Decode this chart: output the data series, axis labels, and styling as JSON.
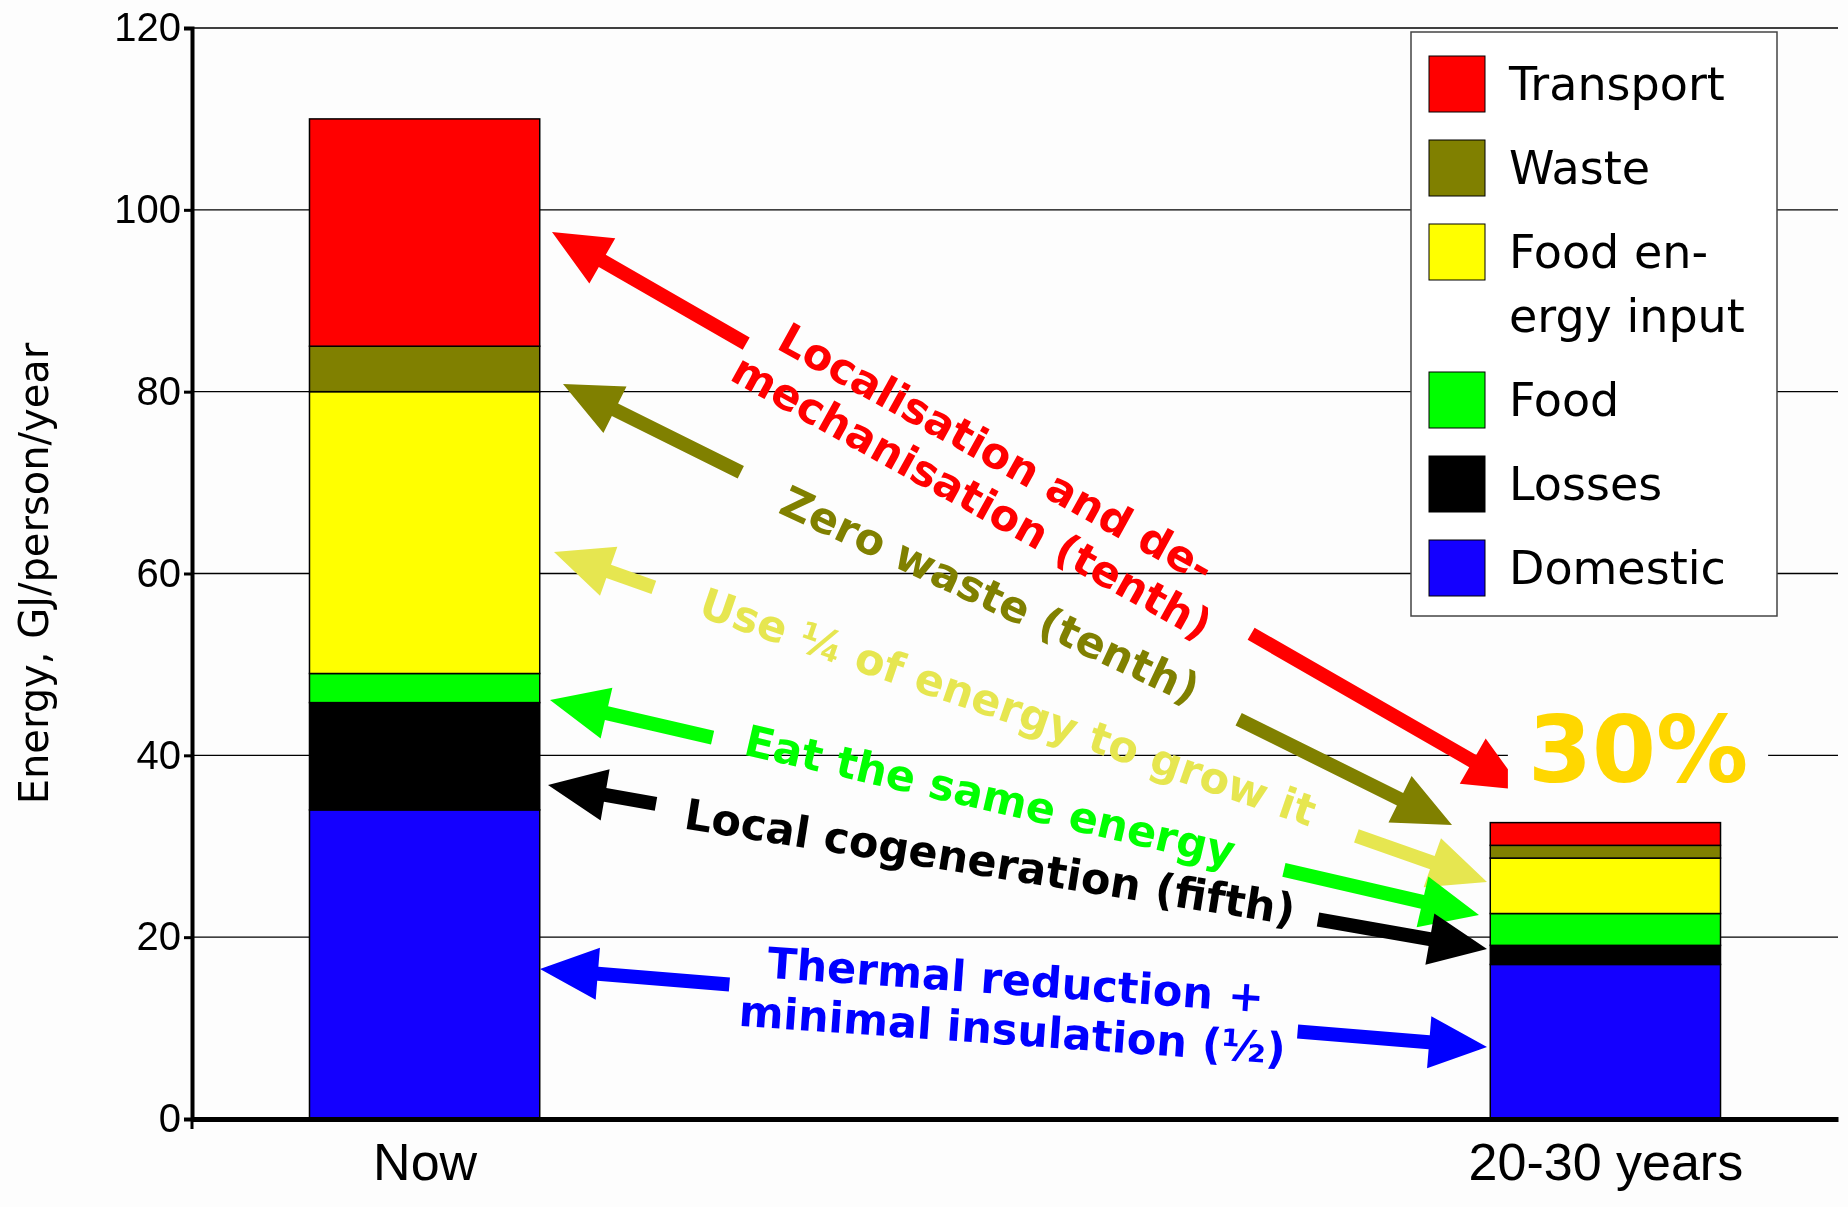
{
  "chart_data": {
    "type": "bar",
    "stacked": true,
    "ylabel": "Energy, GJ/person/year",
    "categories": [
      "Now",
      "20-30 years"
    ],
    "series": [
      {
        "name": "Domestic",
        "color": "#1400ff",
        "values": [
          34,
          17
        ]
      },
      {
        "name": "Losses",
        "color": "#000000",
        "values": [
          11.8,
          2.1
        ]
      },
      {
        "name": "Food",
        "color": "#00ff00",
        "values": [
          3.2,
          3.5
        ]
      },
      {
        "name": "Food en-\nergy input",
        "color": "#ffff00",
        "values": [
          31,
          6.1
        ]
      },
      {
        "name": "Waste",
        "color": "#808000",
        "values": [
          5,
          1.4
        ]
      },
      {
        "name": "Transport",
        "color": "#ff0000",
        "values": [
          25,
          2.5
        ]
      }
    ],
    "ylim": [
      0,
      120
    ],
    "yticks": [
      0,
      20,
      40,
      60,
      80,
      100,
      120
    ],
    "grid": "y",
    "legend": "top right",
    "annotations": [
      "Localisation and de-\nmechanisation (tenth)",
      "Zero waste (tenth)",
      "Use ¼ of energy to grow it",
      "Eat the same energy",
      "Local cogeneration (fifth)",
      "Thermal reduction +\nminimal insulation (½)",
      "30%"
    ]
  }
}
